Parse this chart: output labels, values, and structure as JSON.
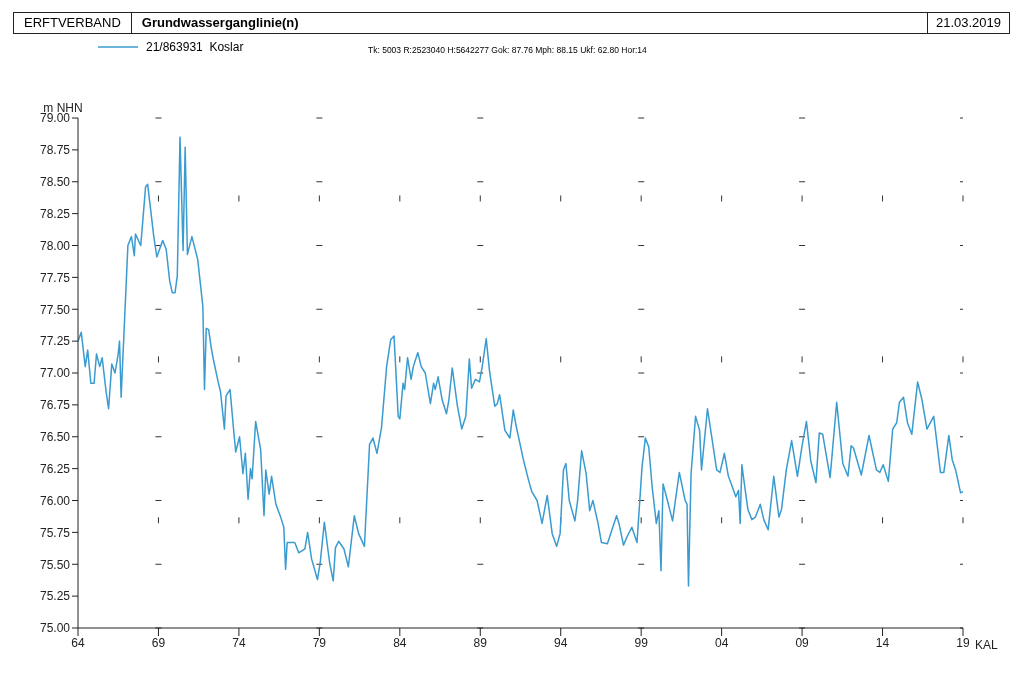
{
  "chart_data": {
    "type": "line",
    "title": "Grundwasserganglinie(n)",
    "annotations": [
      "ERFTVERBAND",
      "21.03.2019",
      "Tk: 5003 R:2523040 H:5642277 Gok: 87.76 Mph: 88.15 Ukf: 62.80 Hor:14"
    ],
    "ylabel": "m NHN",
    "xlabel": "KAL",
    "legend": "top left",
    "grid": true,
    "marker": "none",
    "line_style": "solid",
    "xlim": [
      1964,
      2019
    ],
    "xticks": [
      {
        "value": 1964,
        "label": "64"
      },
      {
        "value": 1969,
        "label": "69"
      },
      {
        "value": 1974,
        "label": "74"
      },
      {
        "value": 1979,
        "label": "79"
      },
      {
        "value": 1984,
        "label": "84"
      },
      {
        "value": 1989,
        "label": "89"
      },
      {
        "value": 1994,
        "label": "94"
      },
      {
        "value": 1999,
        "label": "99"
      },
      {
        "value": 2004,
        "label": "04"
      },
      {
        "value": 2009,
        "label": "09"
      },
      {
        "value": 2014,
        "label": "14"
      },
      {
        "value": 2019,
        "label": "19"
      }
    ],
    "ylim": [
      75,
      79
    ],
    "yticks": [
      {
        "value": 75,
        "label": "75.00"
      },
      {
        "value": 75.25,
        "label": "75.25"
      },
      {
        "value": 75.5,
        "label": "75.50"
      },
      {
        "value": 75.75,
        "label": "75.75"
      },
      {
        "value": 76,
        "label": "76.00"
      },
      {
        "value": 76.25,
        "label": "76.25"
      },
      {
        "value": 76.5,
        "label": "76.50"
      },
      {
        "value": 76.75,
        "label": "76.75"
      },
      {
        "value": 77,
        "label": "77.00"
      },
      {
        "value": 77.25,
        "label": "77.25"
      },
      {
        "value": 77.5,
        "label": "77.50"
      },
      {
        "value": 77.75,
        "label": "77.75"
      },
      {
        "value": 78,
        "label": "78.00"
      },
      {
        "value": 78.25,
        "label": "78.25"
      },
      {
        "value": 78.5,
        "label": "78.50"
      },
      {
        "value": 78.75,
        "label": "78.75"
      },
      {
        "value": 79,
        "label": "79.00"
      }
    ],
    "series": [
      {
        "name": "21/863931  Koslar",
        "color": "#3a9bd0",
        "x": [
          1964.0,
          1964.2,
          1964.45,
          1964.6,
          1964.8,
          1965.0,
          1965.15,
          1965.35,
          1965.5,
          1965.75,
          1965.9,
          1966.1,
          1966.3,
          1966.5,
          1966.58,
          1966.68,
          1967.1,
          1967.32,
          1967.5,
          1967.57,
          1967.9,
          1968.2,
          1968.33,
          1968.7,
          1968.9,
          1969.26,
          1969.48,
          1969.7,
          1969.86,
          1970.03,
          1970.17,
          1970.34,
          1970.53,
          1970.66,
          1970.8,
          1971.08,
          1971.44,
          1971.76,
          1971.86,
          1971.97,
          1972.12,
          1972.29,
          1972.44,
          1972.71,
          1972.86,
          1973.0,
          1973.1,
          1973.2,
          1973.45,
          1973.66,
          1973.8,
          1974.04,
          1974.25,
          1974.4,
          1974.57,
          1974.72,
          1974.82,
          1975.04,
          1975.35,
          1975.56,
          1975.67,
          1975.88,
          1976.03,
          1976.3,
          1976.62,
          1976.79,
          1976.9,
          1977.0,
          1977.47,
          1977.72,
          1978.1,
          1978.27,
          1978.52,
          1978.88,
          1979.05,
          1979.31,
          1979.64,
          1979.86,
          1980.0,
          1980.2,
          1980.53,
          1980.8,
          1981.17,
          1981.44,
          1981.8,
          1982.12,
          1982.33,
          1982.58,
          1982.86,
          1983.18,
          1983.43,
          1983.64,
          1983.9,
          1984.0,
          1984.2,
          1984.3,
          1984.48,
          1984.7,
          1984.84,
          1985.12,
          1985.33,
          1985.58,
          1985.9,
          1986.1,
          1986.2,
          1986.38,
          1986.63,
          1986.9,
          1987.05,
          1987.26,
          1987.58,
          1987.85,
          1988.1,
          1988.32,
          1988.46,
          1988.7,
          1988.95,
          1989.12,
          1989.37,
          1989.58,
          1989.9,
          1990.06,
          1990.2,
          1990.53,
          1990.84,
          1991.05,
          1991.22,
          1991.68,
          1992.0,
          1992.2,
          1992.53,
          1992.84,
          1993.16,
          1993.47,
          1993.75,
          1993.96,
          1994.17,
          1994.32,
          1994.53,
          1994.88,
          1995.05,
          1995.3,
          1995.58,
          1995.8,
          1996.0,
          1996.32,
          1996.53,
          1996.9,
          1997.16,
          1997.47,
          1997.62,
          1997.9,
          1998.1,
          1998.42,
          1998.74,
          1999.05,
          1999.26,
          1999.47,
          1999.68,
          1999.94,
          2000.1,
          2000.23,
          2000.36,
          2000.63,
          2000.95,
          2001.37,
          2001.73,
          2001.85,
          2001.94,
          2002.1,
          2002.38,
          2002.63,
          2002.75,
          2003.12,
          2003.37,
          2003.69,
          2003.9,
          2004.17,
          2004.42,
          2004.63,
          2004.88,
          2005.05,
          2005.15,
          2005.26,
          2005.36,
          2005.63,
          2005.88,
          2006.1,
          2006.4,
          2006.62,
          2006.89,
          2007.24,
          2007.56,
          2007.72,
          2008.02,
          2008.35,
          2008.71,
          2009.0,
          2009.27,
          2009.54,
          2009.86,
          2010.07,
          2010.28,
          2010.74,
          2011.15,
          2011.53,
          2011.85,
          2012.05,
          2012.2,
          2012.68,
          2013.16,
          2013.62,
          2013.83,
          2014.04,
          2014.36,
          2014.63,
          2014.88,
          2015.05,
          2015.3,
          2015.55,
          2015.82,
          2016.18,
          2016.45,
          2016.76,
          2017.18,
          2017.6,
          2017.81,
          2018.12,
          2018.33,
          2018.54,
          2018.85,
          2019.0
        ],
        "values": [
          77.25,
          77.32,
          77.05,
          77.18,
          76.92,
          76.92,
          77.15,
          77.05,
          77.12,
          76.85,
          76.72,
          77.07,
          77.0,
          77.15,
          77.25,
          76.81,
          78.0,
          78.07,
          77.92,
          78.09,
          78.0,
          78.46,
          78.48,
          78.08,
          77.91,
          78.04,
          77.97,
          77.72,
          77.63,
          77.63,
          77.76,
          78.85,
          77.96,
          78.77,
          77.93,
          78.07,
          77.89,
          77.52,
          76.87,
          77.35,
          77.34,
          77.19,
          77.09,
          76.93,
          76.85,
          76.68,
          76.56,
          76.82,
          76.87,
          76.57,
          76.38,
          76.5,
          76.21,
          76.37,
          76.01,
          76.25,
          76.17,
          76.62,
          76.4,
          75.88,
          76.24,
          76.05,
          76.19,
          75.97,
          75.86,
          75.79,
          75.46,
          75.67,
          75.67,
          75.59,
          75.62,
          75.75,
          75.54,
          75.38,
          75.51,
          75.83,
          75.51,
          75.37,
          75.63,
          75.68,
          75.62,
          75.48,
          75.88,
          75.74,
          75.64,
          76.44,
          76.49,
          76.37,
          76.57,
          77.05,
          77.26,
          77.29,
          76.66,
          76.64,
          76.92,
          76.87,
          77.12,
          76.95,
          77.05,
          77.16,
          77.05,
          77.0,
          76.76,
          76.92,
          76.87,
          76.97,
          76.79,
          76.68,
          76.79,
          77.04,
          76.74,
          76.56,
          76.66,
          77.11,
          76.88,
          76.95,
          76.93,
          77.05,
          77.27,
          77.01,
          76.74,
          76.76,
          76.83,
          76.55,
          76.49,
          76.71,
          76.59,
          76.32,
          76.16,
          76.07,
          76.0,
          75.82,
          76.04,
          75.74,
          75.64,
          75.74,
          76.24,
          76.29,
          76.0,
          75.84,
          76.0,
          76.39,
          76.21,
          75.92,
          76.0,
          75.82,
          75.67,
          75.66,
          75.76,
          75.88,
          75.82,
          75.65,
          75.71,
          75.79,
          75.67,
          76.26,
          76.49,
          76.42,
          76.11,
          75.82,
          75.92,
          75.45,
          76.13,
          76.0,
          75.84,
          76.22,
          76.0,
          75.97,
          75.33,
          76.21,
          76.66,
          76.55,
          76.24,
          76.72,
          76.51,
          76.24,
          76.22,
          76.37,
          76.19,
          76.12,
          76.03,
          76.08,
          75.82,
          76.28,
          76.18,
          75.93,
          75.85,
          75.87,
          75.97,
          75.85,
          75.77,
          76.19,
          75.87,
          75.93,
          76.24,
          76.47,
          76.19,
          76.43,
          76.62,
          76.31,
          76.14,
          76.53,
          76.52,
          76.18,
          76.77,
          76.29,
          76.19,
          76.43,
          76.41,
          76.2,
          76.51,
          76.24,
          76.22,
          76.28,
          76.15,
          76.56,
          76.61,
          76.77,
          76.81,
          76.61,
          76.52,
          76.93,
          76.79,
          76.56,
          76.66,
          76.22,
          76.22,
          76.51,
          76.32,
          76.24,
          76.06,
          76.07
        ]
      }
    ]
  }
}
